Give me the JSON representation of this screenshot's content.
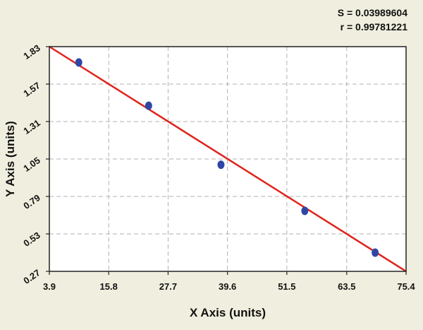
{
  "stats": {
    "s_line": "S = 0.03989604",
    "r_line": "r = 0.99781221"
  },
  "chart_data": {
    "type": "scatter",
    "title": "",
    "xlabel": "X Axis (units)",
    "ylabel": "Y Axis (units)",
    "xlim": [
      3.9,
      75.4
    ],
    "ylim": [
      0.27,
      1.83
    ],
    "x_ticks": [
      "3.9",
      "15.8",
      "27.7",
      "39.6",
      "51.5",
      "63.5",
      "75.4"
    ],
    "y_ticks": [
      "0.27",
      "0.53",
      "0.79",
      "1.05",
      "1.31",
      "1.57",
      "1.83"
    ],
    "grid": true,
    "series": [
      {
        "points": [
          {
            "x": 9.8,
            "y": 1.72
          },
          {
            "x": 23.8,
            "y": 1.42
          },
          {
            "x": 38.3,
            "y": 1.01
          },
          {
            "x": 55.1,
            "y": 0.69
          },
          {
            "x": 69.2,
            "y": 0.4
          }
        ]
      }
    ],
    "fit_line": {
      "x": [
        3.9,
        75.4
      ],
      "y": [
        1.83,
        0.27
      ]
    },
    "colors": {
      "points": "#2e47a6",
      "fit_line": "#e0231b",
      "grid": "#b0b0b0",
      "plot_bg": "#ffffff",
      "page_bg": "#f0efdf"
    }
  }
}
